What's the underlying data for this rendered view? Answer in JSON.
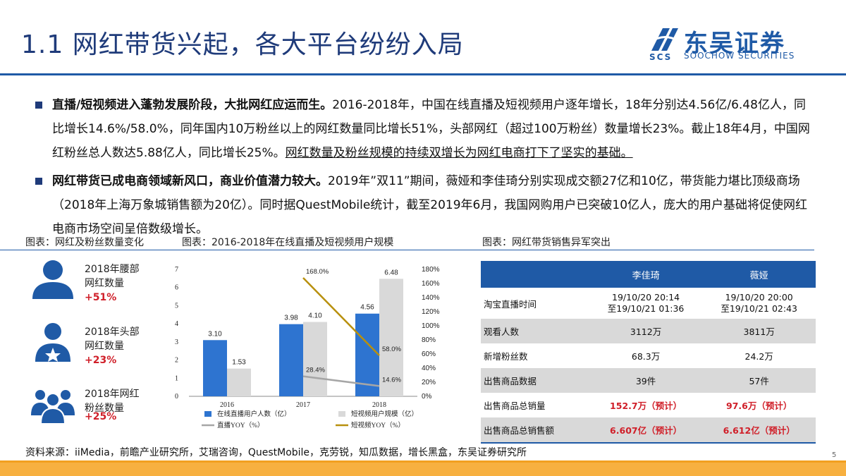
{
  "header": {
    "title": "1.1 网红带货兴起，各大平台纷纷入局",
    "logo_mark": "SCS",
    "logo_cn": "东吴证券",
    "logo_en": "SOOCHOW SECURITIES"
  },
  "bullets": [
    {
      "bold": "直播/短视频进入蓬勃发展阶段，大批网红应运而生。",
      "text": "2016-2018年，中国在线直播及短视频用户逐年增长，18年分别达4.56亿/6.48亿人，同比增长14.6%/58.0%，同年国内10万粉丝以上的网红数量同比增长51%，头部网红（超过100万粉丝）数量增长23%。截止18年4月，中国网红粉丝总人数达5.88亿人，同比增长25%。",
      "underline": "网红数量及粉丝规模的持续双增长为网红电商打下了坚实的基础。"
    },
    {
      "bold": "网红带货已成电商领域新风口，商业价值潜力较大。",
      "text": "2019年”双11”期间，薇娅和李佳琦分别实现成交额27亿和10亿，带货能力堪比顶级商场（2018年上海万象城销售额为20亿）。同时据QuestMobile统计，截至2019年6月，我国网购用户已突破10亿人，庞大的用户基础将促使网红电商市场空间呈倍数级增长。",
      "underline": ""
    }
  ],
  "captions": {
    "left": "图表：网红及粉丝数量变化",
    "middle": "图表：2016-2018年在线直播及短视频用户规模",
    "right": "图表：网红带货销售异军突出"
  },
  "icon_stats": [
    {
      "label1": "2018年腰部",
      "label2": "网红数量",
      "growth": "+51%",
      "icon": "person-icon"
    },
    {
      "label1": "2018年头部",
      "label2": "网红数量",
      "growth": "+23%",
      "icon": "person-star-icon"
    },
    {
      "label1": "2018年网红",
      "label2": "粉丝数量",
      "growth": "+25%",
      "icon": "group-icon"
    }
  ],
  "chart_data": {
    "type": "bar",
    "categories": [
      "2016",
      "2017",
      "2018"
    ],
    "series": [
      {
        "name": "在线直播用户人数（亿）",
        "type": "bar",
        "axis": "left",
        "values": [
          3.1,
          3.98,
          4.56
        ],
        "labels": [
          "3.10",
          "3.98",
          "4.56"
        ],
        "color": "#2e74d0"
      },
      {
        "name": "短视频用户规模（亿）",
        "type": "bar",
        "axis": "left",
        "values": [
          1.53,
          4.1,
          6.48
        ],
        "labels": [
          "1.53",
          "4.10",
          "6.48"
        ],
        "color": "#d9d9d9"
      },
      {
        "name": "直播YOY（%）",
        "type": "line",
        "axis": "right",
        "x": [
          "2017",
          "2018"
        ],
        "values": [
          28.4,
          14.6
        ],
        "labels": [
          "28.4%",
          "14.6%"
        ],
        "color": "#a6a6a6"
      },
      {
        "name": "短视频YOY（%）",
        "type": "line",
        "axis": "right",
        "x": [
          "2017",
          "2018"
        ],
        "values": [
          168.0,
          58.0
        ],
        "labels": [
          "168.0%",
          "58.0%"
        ],
        "color": "#b8900e"
      }
    ],
    "ylim": [
      0,
      7
    ],
    "yticks": [
      "0",
      "1",
      "2",
      "3",
      "4",
      "5",
      "6",
      "7"
    ],
    "y2lim": [
      0,
      180
    ],
    "y2ticks": [
      "0%",
      "20%",
      "40%",
      "60%",
      "80%",
      "100%",
      "120%",
      "140%",
      "160%",
      "180%"
    ],
    "legend": "bottom",
    "grid": false
  },
  "table": {
    "headers": [
      "",
      "李佳琦",
      "薇娅"
    ],
    "rows": [
      {
        "label": "淘宝直播时间",
        "c1a": "19/10/20 20:14",
        "c1b": "至19/10/21 01:36",
        "c2a": "19/10/20 20:00",
        "c2b": "至19/10/21 02:43"
      },
      {
        "label": "观看人数",
        "c1": "3112万",
        "c2": "3811万"
      },
      {
        "label": "新增粉丝数",
        "c1": "68.3万",
        "c2": "24.2万"
      },
      {
        "label": "出售商品数据",
        "c1": "39件",
        "c2": "57件"
      },
      {
        "label": "出售商品总销量",
        "c1": "152.7万（预计）",
        "c2": "97.6万（预计）"
      },
      {
        "label": "出售商品总销售额",
        "c1": "6.607亿（预计）",
        "c2": "6.612亿（预计）"
      }
    ]
  },
  "source": "资料来源：iiMedia，前瞻产业研究所，艾瑞咨询，QuestMobile，克劳锐，知瓜数据，增长黑盒，东吴证券研究所",
  "page_number": "5",
  "colors": {
    "brand_blue": "#1f5aa6",
    "title_blue": "#1f3b7a",
    "accent_red": "#d0202a",
    "footer_orange": "#f7b040"
  }
}
